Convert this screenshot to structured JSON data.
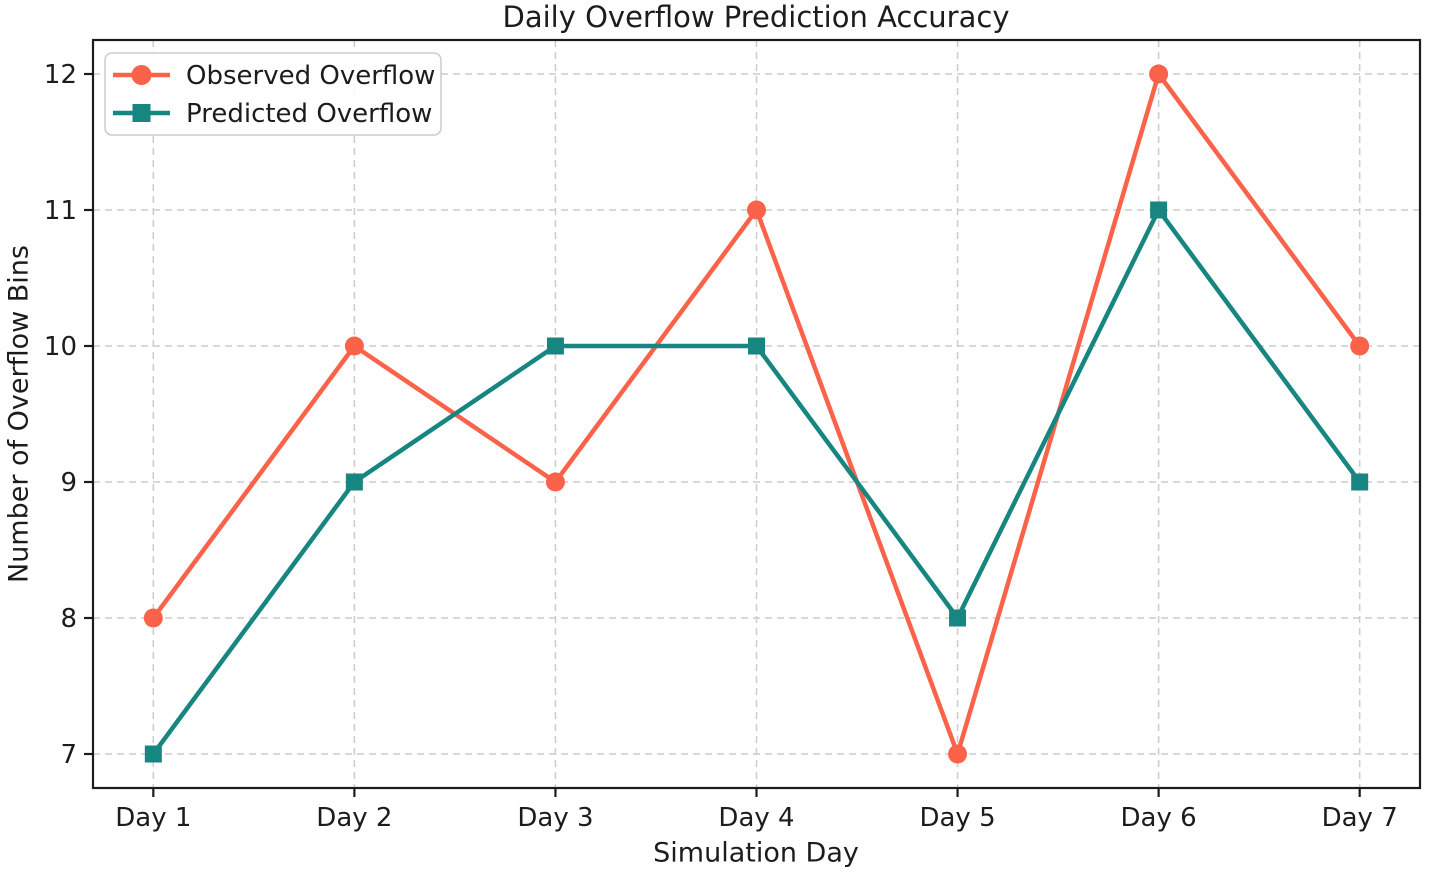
{
  "chart_data": {
    "type": "line",
    "title": "Daily Overflow Prediction Accuracy",
    "xlabel": "Simulation Day",
    "ylabel": "Number of Overflow Bins",
    "categories": [
      "Day 1",
      "Day 2",
      "Day 3",
      "Day 4",
      "Day 5",
      "Day 6",
      "Day 7"
    ],
    "series": [
      {
        "name": "Observed Overflow",
        "values": [
          8,
          10,
          9,
          11,
          7,
          12,
          10
        ],
        "color": "#FA6249",
        "marker": "circle"
      },
      {
        "name": "Predicted Overflow",
        "values": [
          7,
          9,
          10,
          10,
          8,
          11,
          9
        ],
        "color": "#178680",
        "marker": "square"
      }
    ],
    "yticks": [
      7,
      8,
      9,
      10,
      11,
      12
    ],
    "ylim": [
      6.75,
      12.25
    ],
    "x_margin": 0.3,
    "grid": true,
    "grid_style": "dashed",
    "legend_position": "upper-left",
    "style": {
      "grid_color": "#cccccc",
      "spine_color": "#1c1c1c",
      "text_color": "#1c1c1c",
      "legend_border": "#cccccc",
      "legend_bg": "#ffffff",
      "line_width": 4.5
    }
  }
}
